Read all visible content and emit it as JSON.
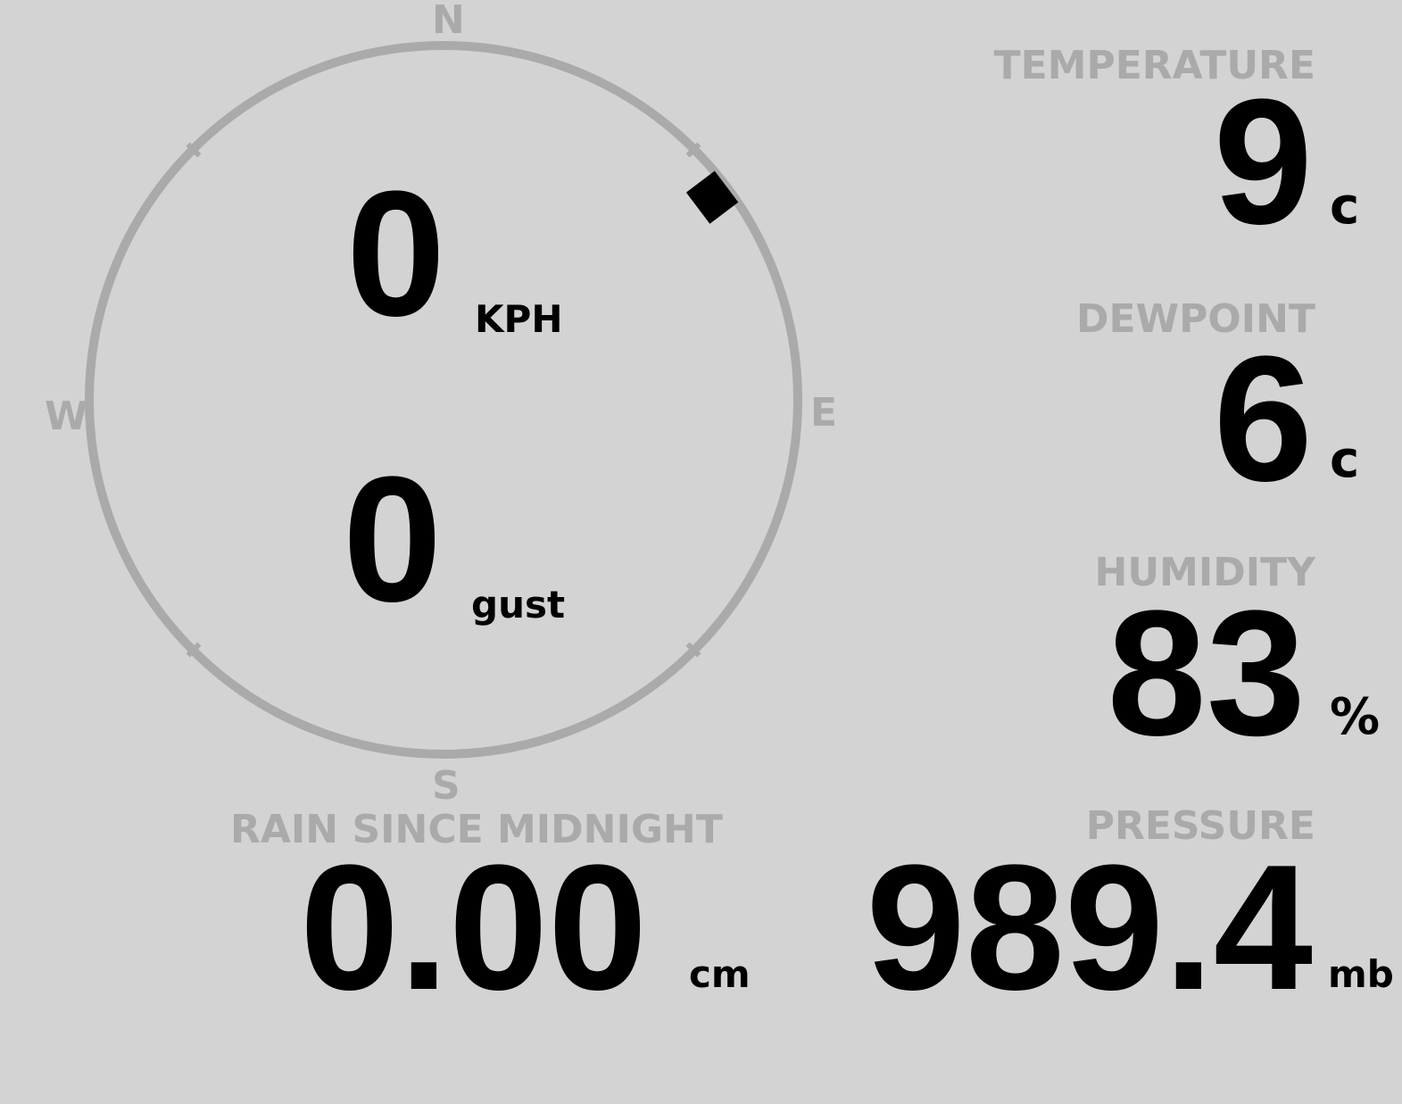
{
  "compass": {
    "n": "N",
    "e": "E",
    "s": "S",
    "w": "W",
    "wind_direction_deg": 53,
    "ring_color": "#aaaaaa"
  },
  "wind": {
    "speed": "0",
    "speed_unit": "KPH",
    "gust": "0",
    "gust_unit": "gust"
  },
  "temperature": {
    "label": "TEMPERATURE",
    "value": "9",
    "unit": "c"
  },
  "dewpoint": {
    "label": "DEWPOINT",
    "value": "6",
    "unit": "c"
  },
  "humidity": {
    "label": "HUMIDITY",
    "value": "83",
    "unit": "%"
  },
  "pressure": {
    "label": "PRESSURE",
    "value": "989.4",
    "unit": "mb"
  },
  "rain": {
    "label": "RAIN SINCE MIDNIGHT",
    "value": "0.00",
    "unit": "cm"
  },
  "colors": {
    "background": "#d3d3d3",
    "label": "#aaaaaa",
    "value": "#000000"
  }
}
